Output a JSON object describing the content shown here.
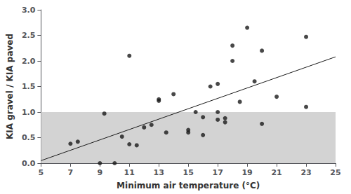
{
  "chart_data": {
    "type": "scatter",
    "xlabel": "Minimum air temperature (°C)",
    "ylabel": "KIA gravel / KIA paved",
    "series": [
      {
        "type": "scatter",
        "color": "#1a1a1a",
        "x": [
          7,
          7.5,
          9,
          9.3,
          10,
          10.5,
          11,
          11,
          11.5,
          12,
          12.5,
          13,
          13,
          13.5,
          14,
          15,
          15,
          15.5,
          16,
          16,
          16.5,
          17,
          17,
          17,
          17.5,
          17.5,
          18,
          18,
          18.5,
          19,
          19.5,
          20,
          20,
          21,
          23,
          23
        ],
        "values": [
          0.38,
          0.42,
          0.0,
          0.97,
          0.0,
          0.52,
          2.1,
          0.37,
          0.35,
          0.7,
          0.75,
          1.25,
          1.22,
          0.6,
          1.35,
          0.6,
          0.65,
          1.0,
          0.55,
          0.9,
          1.5,
          1.0,
          0.85,
          1.55,
          0.88,
          0.8,
          2.3,
          2.0,
          1.2,
          2.65,
          1.6,
          2.2,
          0.77,
          1.3,
          2.47,
          1.1
        ]
      },
      {
        "type": "line",
        "color": "#1a1a1a",
        "x": [
          5,
          25
        ],
        "values": [
          0.05,
          2.08
        ]
      }
    ],
    "shade": {
      "ylim": [
        0.0,
        1.0
      ],
      "color": "#d3d3d3"
    },
    "xlim": [
      5,
      25
    ],
    "ylim": [
      0.0,
      3.0
    ],
    "xticks": [
      5,
      7,
      9,
      11,
      13,
      15,
      17,
      19,
      21,
      23,
      25
    ],
    "yticks": [
      {
        "value": 0.0,
        "label": "0.0"
      },
      0.5,
      {
        "value": 1.0,
        "label": "1.0"
      },
      1.5,
      {
        "value": 2.0,
        "label": "2.0"
      },
      2.5,
      {
        "value": 3.0,
        "label": "3.0"
      }
    ],
    "grid": false
  }
}
